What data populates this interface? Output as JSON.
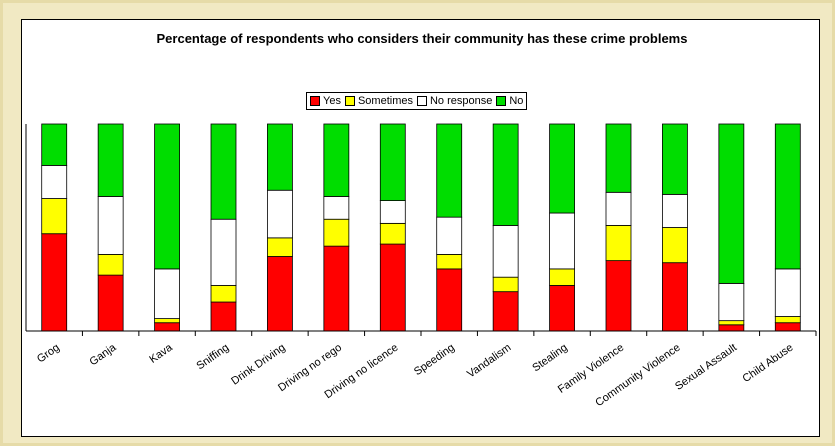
{
  "chart_data": {
    "type": "bar",
    "stacked": true,
    "title": "Percentage of respondents who considers their community has these crime problems",
    "categories": [
      "Grog",
      "Ganja",
      "Kava",
      "Sniffing",
      "Drink Driving",
      "Driving no rego",
      "Driving no licence",
      "Speeding",
      "Vandalism",
      "Stealing",
      "Family Violence",
      "Community Violence",
      "Sexual Assault",
      "Child Abuse"
    ],
    "series": [
      {
        "name": "Yes",
        "color": "#ff0000",
        "values": [
          47,
          27,
          4,
          14,
          36,
          41,
          42,
          30,
          19,
          22,
          34,
          33,
          3,
          4
        ]
      },
      {
        "name": "Sometimes",
        "color": "#ffff00",
        "values": [
          17,
          10,
          2,
          8,
          9,
          13,
          10,
          7,
          7,
          8,
          17,
          17,
          2,
          3
        ]
      },
      {
        "name": "No response",
        "color": "#ffffff",
        "values": [
          16,
          28,
          24,
          32,
          23,
          11,
          11,
          18,
          25,
          27,
          16,
          16,
          18,
          23
        ]
      },
      {
        "name": "No",
        "color": "#00dd00",
        "values": [
          20,
          35,
          70,
          46,
          32,
          35,
          37,
          45,
          49,
          43,
          33,
          34,
          77,
          70
        ]
      }
    ],
    "ylim": [
      0,
      100
    ],
    "grid": false,
    "legend_position": "top"
  }
}
